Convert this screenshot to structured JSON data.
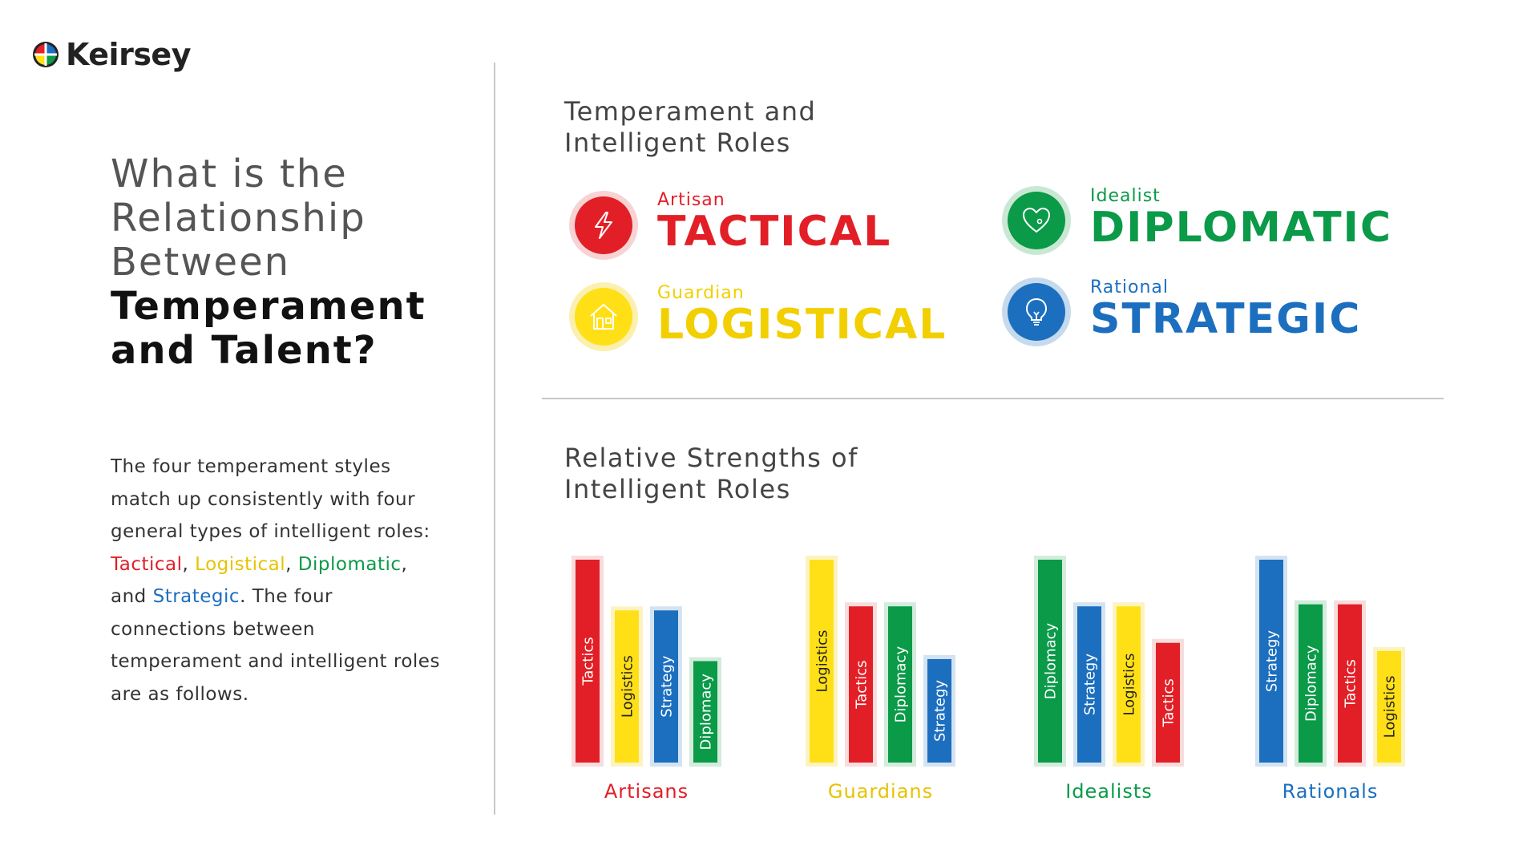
{
  "brand": {
    "name": "Keirsey"
  },
  "headline": {
    "light_lines": [
      "What is the",
      "Relationship",
      "Between"
    ],
    "dark_lines": [
      "Temperament",
      "and Talent?"
    ]
  },
  "body": {
    "part1": "The four temperament styles match up consistently with four general types of intelligent roles: ",
    "tactical": "Tactical",
    "sep1": ", ",
    "logistical": "Logistical",
    "sep2": ", ",
    "diplomatic": "Diplomatic",
    "sep3": ", and ",
    "strategic": "Strategic",
    "part2": ". The four connections between temperament and intelligent roles are as follows."
  },
  "roles_section": {
    "title_line1": "Temperament and",
    "title_line2": "Intelligent Roles",
    "roles": [
      {
        "temperament": "Artisan",
        "role": "TACTICAL",
        "color": "#e21f26",
        "halo": "#f7d3d4",
        "icon": "lightning-bolt-icon"
      },
      {
        "temperament": "Idealist",
        "role": "DIPLOMATIC",
        "color": "#0a9a48",
        "halo": "#c9e8d3",
        "icon": "heart-icon"
      },
      {
        "temperament": "Guardian",
        "role": "LOGISTICAL",
        "color": "#ffe017",
        "text_color": "#f2cf00",
        "halo": "#fbf0b0",
        "icon": "house-icon"
      },
      {
        "temperament": "Rational",
        "role": "STRATEGIC",
        "color": "#1c6fbf",
        "halo": "#c6daee",
        "icon": "lightbulb-icon"
      }
    ]
  },
  "strengths_section": {
    "title_line1": "Relative Strengths of",
    "title_line2": "Intelligent Roles"
  },
  "colors": {
    "Tactics": "#e21f26",
    "Logistics": "#ffe017",
    "Diplomacy": "#0a9a48",
    "Strategy": "#1c6fbf"
  },
  "halos": {
    "Tactics": "#f9dcdc",
    "Logistics": "#fcf3c0",
    "Diplomacy": "#d3ecdc",
    "Strategy": "#d3e3f2"
  },
  "chart_data": {
    "type": "bar",
    "title": "Relative Strengths of Intelligent Roles",
    "grid": false,
    "groups": [
      {
        "name": "Artisans",
        "label_color": "#e21f26",
        "bars": [
          {
            "role": "Tactics",
            "value": 100
          },
          {
            "role": "Logistics",
            "value": 75
          },
          {
            "role": "Strategy",
            "value": 75
          },
          {
            "role": "Diplomacy",
            "value": 50
          }
        ]
      },
      {
        "name": "Guardians",
        "label_color": "#e6c300",
        "bars": [
          {
            "role": "Logistics",
            "value": 100
          },
          {
            "role": "Tactics",
            "value": 77
          },
          {
            "role": "Diplomacy",
            "value": 77
          },
          {
            "role": "Strategy",
            "value": 51
          }
        ]
      },
      {
        "name": "Idealists",
        "label_color": "#0a9a48",
        "bars": [
          {
            "role": "Diplomacy",
            "value": 100
          },
          {
            "role": "Strategy",
            "value": 77
          },
          {
            "role": "Logistics",
            "value": 77
          },
          {
            "role": "Tactics",
            "value": 59
          }
        ]
      },
      {
        "name": "Rationals",
        "label_color": "#1c6fbf",
        "bars": [
          {
            "role": "Strategy",
            "value": 100
          },
          {
            "role": "Diplomacy",
            "value": 78
          },
          {
            "role": "Tactics",
            "value": 78
          },
          {
            "role": "Logistics",
            "value": 55
          }
        ]
      }
    ]
  }
}
